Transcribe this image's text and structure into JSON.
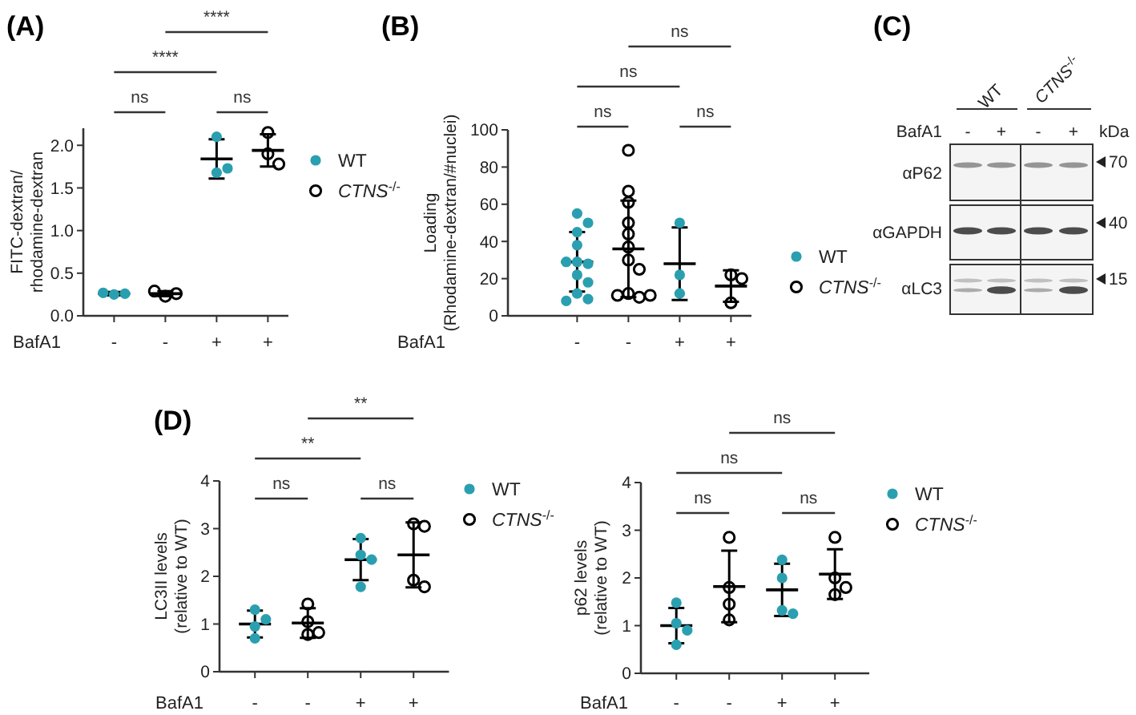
{
  "chart_data": [
    {
      "type": "scatter",
      "title": "(A)",
      "ylabel": "FITC-dextran/\nrhodamine-dextran",
      "xlabel": "BafA1",
      "categories": [
        "-",
        "-",
        "+",
        "+"
      ],
      "ylim": [
        0,
        2.2
      ],
      "yticks": [
        {
          "value": 0,
          "label": "0.0"
        },
        {
          "value": 0.5,
          "label": "0.5"
        },
        {
          "value": 1,
          "label": "1.0"
        },
        {
          "value": 1.5,
          "label": "1.5"
        },
        {
          "value": 2,
          "label": "2.0"
        }
      ],
      "legend": "right",
      "grid": false,
      "annotations": [
        "ns",
        "ns",
        "****",
        "****"
      ],
      "series": [
        {
          "name": "WT",
          "color": "#2a9fb0",
          "marker": "circle",
          "values": [
            0.25,
            null,
            2.1,
            null
          ]
        },
        {
          "color": "#2a9fb0",
          "marker": "circle",
          "values": [
            0.26,
            null,
            1.68,
            null
          ]
        },
        {
          "color": "#2a9fb0",
          "marker": "circle",
          "values": [
            0.27,
            null,
            1.73,
            null
          ]
        },
        {
          "name": "CTNS$^{-/-}$",
          "color": "#000000",
          "marker": "circle",
          "values": [
            null,
            0.23,
            null,
            2.15
          ]
        },
        {
          "color": "#000000",
          "marker": "circle",
          "values": [
            null,
            0.26,
            null,
            1.9
          ]
        },
        {
          "color": "#000000",
          "marker": "circle",
          "values": [
            null,
            0.29,
            null,
            1.78
          ]
        },
        {
          "type": "box",
          "color": "#000000",
          "boxes": [
            {
              "low": 0.24,
              "q1": 0.26,
              "median": 0.26,
              "q3": 0.26,
              "high": 0.28
            },
            {
              "low": 0.23,
              "q1": 0.26,
              "median": 0.26,
              "q3": 0.26,
              "high": 0.29
            },
            {
              "low": 1.61,
              "q1": 1.84,
              "median": 1.84,
              "q3": 1.84,
              "high": 2.07
            },
            {
              "low": 1.75,
              "q1": 1.94,
              "median": 1.94,
              "q3": 1.94,
              "high": 2.13
            }
          ]
        }
      ]
    },
    {
      "type": "scatter",
      "title": "(B)",
      "ylabel": "Loading\n(Rhodamine-dextran/#nuclei)",
      "xlabel": "BafA1",
      "categories": [
        "-",
        "-",
        "+",
        "+"
      ],
      "ylim": [
        0,
        100
      ],
      "yticks": [
        0,
        20,
        40,
        60,
        80,
        100
      ],
      "legend": "right",
      "grid": false,
      "annotations": [
        "ns",
        "ns",
        "ns",
        "ns"
      ],
      "series": [
        {
          "name": "WT",
          "color": "#2a9fb0",
          "marker": "circle",
          "values": [
            55,
            null,
            50,
            null
          ]
        },
        {
          "color": "#2a9fb0",
          "marker": "circle",
          "values": [
            50,
            null,
            22,
            null
          ]
        },
        {
          "color": "#2a9fb0",
          "marker": "circle",
          "values": [
            45,
            null,
            12,
            null
          ]
        },
        {
          "color": "#2a9fb0",
          "marker": "circle",
          "values": [
            38,
            null,
            null,
            null
          ]
        },
        {
          "color": "#2a9fb0",
          "marker": "circle",
          "values": [
            29,
            null,
            null,
            null
          ]
        },
        {
          "color": "#2a9fb0",
          "marker": "circle",
          "values": [
            28,
            null,
            null,
            null
          ]
        },
        {
          "color": "#2a9fb0",
          "marker": "circle",
          "values": [
            29,
            null,
            null,
            null
          ]
        },
        {
          "color": "#2a9fb0",
          "marker": "circle",
          "values": [
            22,
            null,
            null,
            null
          ]
        },
        {
          "color": "#2a9fb0",
          "marker": "circle",
          "values": [
            18,
            null,
            null,
            null
          ]
        },
        {
          "color": "#2a9fb0",
          "marker": "circle",
          "values": [
            12,
            null,
            null,
            null
          ]
        },
        {
          "color": "#2a9fb0",
          "marker": "circle",
          "values": [
            9,
            null,
            null,
            null
          ]
        },
        {
          "color": "#2a9fb0",
          "marker": "circle",
          "values": [
            8,
            null,
            null,
            null
          ]
        },
        {
          "name": "CTNS$^{-/-}$",
          "color": "#000000",
          "marker": "circle",
          "values": [
            null,
            89,
            null,
            22
          ]
        },
        {
          "color": "#000000",
          "marker": "circle",
          "values": [
            null,
            67,
            null,
            20
          ]
        },
        {
          "color": "#000000",
          "marker": "circle",
          "values": [
            null,
            61,
            null,
            7
          ]
        },
        {
          "color": "#000000",
          "marker": "circle",
          "values": [
            null,
            50,
            null,
            null
          ]
        },
        {
          "color": "#000000",
          "marker": "circle",
          "values": [
            null,
            44,
            null,
            null
          ]
        },
        {
          "color": "#000000",
          "marker": "circle",
          "values": [
            null,
            37,
            null,
            null
          ]
        },
        {
          "color": "#000000",
          "marker": "circle",
          "values": [
            null,
            30,
            null,
            null
          ]
        },
        {
          "color": "#000000",
          "marker": "circle",
          "values": [
            null,
            25,
            null,
            null
          ]
        },
        {
          "color": "#000000",
          "marker": "circle",
          "values": [
            null,
            12,
            null,
            null
          ]
        },
        {
          "color": "#000000",
          "marker": "circle",
          "values": [
            null,
            10,
            null,
            null
          ]
        },
        {
          "color": "#000000",
          "marker": "circle",
          "values": [
            null,
            11,
            null,
            null
          ]
        },
        {
          "color": "#000000",
          "marker": "circle",
          "values": [
            null,
            11,
            null,
            null
          ]
        },
        {
          "type": "box",
          "color": "#000000",
          "boxes": [
            {
              "low": 13,
              "q1": 29,
              "median": 29,
              "q3": 29,
              "high": 45
            },
            {
              "low": 10,
              "q1": 36,
              "median": 36,
              "q3": 36,
              "high": 62
            },
            {
              "low": 8.5,
              "q1": 28,
              "median": 28,
              "q3": 28,
              "high": 47.5
            },
            {
              "low": 7.5,
              "q1": 16,
              "median": 16,
              "q3": 16,
              "high": 24.5
            }
          ]
        }
      ]
    },
    {
      "type": "other",
      "title": "(C)",
      "annotations": [
        "WT",
        "CTNS$^{-/-}$",
        "BafA1",
        "-",
        "+",
        "-",
        "+",
        "kDa",
        "αP62",
        "αGAPDH",
        "αLC3",
        "70",
        "40",
        "15"
      ]
    },
    {
      "type": "scatter",
      "title": "(D)",
      "ylabel": "LC3II levels\n(relative to WT)",
      "xlabel": "BafA1",
      "categories": [
        "-",
        "-",
        "+",
        "+"
      ],
      "ylim": [
        0,
        4
      ],
      "yticks": [
        0,
        1,
        2,
        3,
        4
      ],
      "legend": "right",
      "grid": false,
      "annotations": [
        "ns",
        "ns",
        "**",
        "**"
      ],
      "series": [
        {
          "name": "WT",
          "color": "#2a9fb0",
          "marker": "circle",
          "values": [
            1.3,
            null,
            2.8,
            null
          ]
        },
        {
          "color": "#2a9fb0",
          "marker": "circle",
          "values": [
            1.1,
            null,
            2.45,
            null
          ]
        },
        {
          "color": "#2a9fb0",
          "marker": "circle",
          "values": [
            0.95,
            null,
            2.35,
            null
          ]
        },
        {
          "color": "#2a9fb0",
          "marker": "circle",
          "values": [
            0.7,
            null,
            1.78,
            null
          ]
        },
        {
          "name": "CTNS$^{-/-}$",
          "color": "#000000",
          "marker": "circle",
          "values": [
            null,
            1.42,
            null,
            3.1
          ]
        },
        {
          "color": "#000000",
          "marker": "circle",
          "values": [
            null,
            1.05,
            null,
            3.05
          ]
        },
        {
          "color": "#000000",
          "marker": "circle",
          "values": [
            null,
            0.78,
            null,
            1.92
          ]
        },
        {
          "color": "#000000",
          "marker": "circle",
          "values": [
            null,
            0.82,
            null,
            1.78
          ]
        },
        {
          "type": "box",
          "color": "#000000",
          "boxes": [
            {
              "low": 0.72,
              "q1": 1.0,
              "median": 1.0,
              "q3": 1.0,
              "high": 1.28
            },
            {
              "low": 0.71,
              "q1": 1.02,
              "median": 1.02,
              "q3": 1.02,
              "high": 1.33
            },
            {
              "low": 1.92,
              "q1": 2.35,
              "median": 2.35,
              "q3": 2.35,
              "high": 2.78
            },
            {
              "low": 1.77,
              "q1": 2.45,
              "median": 2.45,
              "q3": 2.45,
              "high": 3.13
            }
          ]
        }
      ]
    },
    {
      "type": "scatter",
      "ylabel": "p62 levels\n(relative to WT)",
      "xlabel": "BafA1",
      "categories": [
        "-",
        "-",
        "+",
        "+"
      ],
      "ylim": [
        0,
        4
      ],
      "yticks": [
        0,
        1,
        2,
        3,
        4
      ],
      "legend": "right",
      "grid": false,
      "annotations": [
        "ns",
        "ns",
        "ns",
        "ns"
      ],
      "series": [
        {
          "name": "WT",
          "color": "#2a9fb0",
          "marker": "circle",
          "values": [
            1.48,
            null,
            2.38,
            null
          ]
        },
        {
          "color": "#2a9fb0",
          "marker": "circle",
          "values": [
            1.05,
            null,
            2.0,
            null
          ]
        },
        {
          "color": "#2a9fb0",
          "marker": "circle",
          "values": [
            0.9,
            null,
            1.32,
            null
          ]
        },
        {
          "color": "#2a9fb0",
          "marker": "circle",
          "values": [
            0.6,
            null,
            1.25,
            null
          ]
        },
        {
          "name": "CTNS$^{-/-}$",
          "color": "#000000",
          "marker": "circle",
          "values": [
            null,
            2.85,
            null,
            2.85
          ]
        },
        {
          "color": "#000000",
          "marker": "circle",
          "values": [
            null,
            1.8,
            null,
            2.0
          ]
        },
        {
          "color": "#000000",
          "marker": "circle",
          "values": [
            null,
            1.45,
            null,
            1.8
          ]
        },
        {
          "color": "#000000",
          "marker": "circle",
          "values": [
            null,
            1.12,
            null,
            1.65
          ]
        },
        {
          "type": "box",
          "color": "#000000",
          "boxes": [
            {
              "low": 0.63,
              "q1": 1.0,
              "median": 1.0,
              "q3": 1.0,
              "high": 1.37
            },
            {
              "low": 1.07,
              "q1": 1.82,
              "median": 1.82,
              "q3": 1.82,
              "high": 2.57
            },
            {
              "low": 1.2,
              "q1": 1.75,
              "median": 1.75,
              "q3": 1.75,
              "high": 2.3
            },
            {
              "low": 1.56,
              "q1": 2.08,
              "median": 2.08,
              "q3": 2.08,
              "high": 2.6
            }
          ]
        }
      ]
    }
  ]
}
